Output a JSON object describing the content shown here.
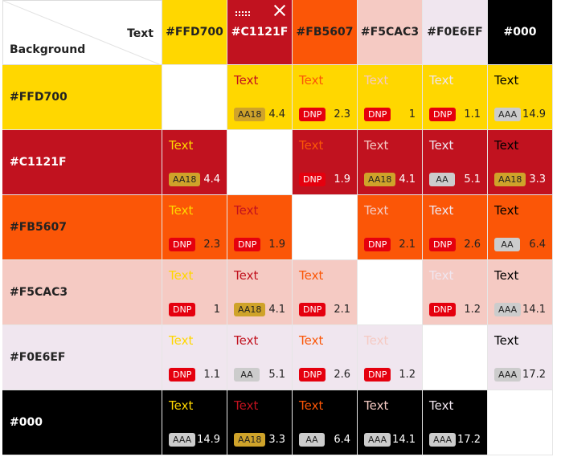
{
  "corner": {
    "text_label": "Text",
    "background_label": "Background"
  },
  "colors": [
    {
      "name": "#FFD700",
      "hex": "#FFD700",
      "label_color": "#222222"
    },
    {
      "name": "#C1121F",
      "hex": "#C1121F",
      "label_color": "#ffffff"
    },
    {
      "name": "#FB5607",
      "hex": "#FB5607",
      "label_color": "#222222"
    },
    {
      "name": "#F5CAC3",
      "hex": "#F5CAC3",
      "label_color": "#222222"
    },
    {
      "name": "#F0E6EF",
      "hex": "#F0E6EF",
      "label_color": "#222222"
    },
    {
      "name": "#000",
      "hex": "#000000",
      "label_color": "#ffffff"
    }
  ],
  "sample_text": "Text",
  "badge_styles": {
    "AA18": {
      "bg": "#CFA32A",
      "fg": "#222222"
    },
    "DNP": {
      "bg": "#E5000E",
      "fg": "#ffffff"
    },
    "AA": {
      "bg": "#CCCCCC",
      "fg": "#222222"
    },
    "AAA": {
      "bg": "#CCCCCC",
      "fg": "#222222"
    }
  },
  "matrix": [
    [
      null,
      [
        "AA18",
        "4.4"
      ],
      [
        "DNP",
        "2.3"
      ],
      [
        "DNP",
        "1"
      ],
      [
        "DNP",
        "1.1"
      ],
      [
        "AAA",
        "14.9"
      ]
    ],
    [
      [
        "AA18",
        "4.4"
      ],
      null,
      [
        "DNP",
        "1.9"
      ],
      [
        "AA18",
        "4.1"
      ],
      [
        "AA",
        "5.1"
      ],
      [
        "AA18",
        "3.3"
      ]
    ],
    [
      [
        "DNP",
        "2.3"
      ],
      [
        "DNP",
        "1.9"
      ],
      null,
      [
        "DNP",
        "2.1"
      ],
      [
        "DNP",
        "2.6"
      ],
      [
        "AA",
        "6.4"
      ]
    ],
    [
      [
        "DNP",
        "1"
      ],
      [
        "AA18",
        "4.1"
      ],
      [
        "DNP",
        "2.1"
      ],
      null,
      [
        "DNP",
        "1.2"
      ],
      [
        "AAA",
        "14.1"
      ]
    ],
    [
      [
        "DNP",
        "1.1"
      ],
      [
        "AA",
        "5.1"
      ],
      [
        "DNP",
        "2.6"
      ],
      [
        "DNP",
        "1.2"
      ],
      null,
      [
        "AAA",
        "17.2"
      ]
    ],
    [
      [
        "AAA",
        "14.9"
      ],
      [
        "AA18",
        "3.3"
      ],
      [
        "AA",
        "6.4"
      ],
      [
        "AAA",
        "14.1"
      ],
      [
        "AAA",
        "17.2"
      ],
      null
    ]
  ],
  "selected_column": 1,
  "icons": {
    "drag": "drag-handle-icon",
    "close": "close-icon"
  }
}
